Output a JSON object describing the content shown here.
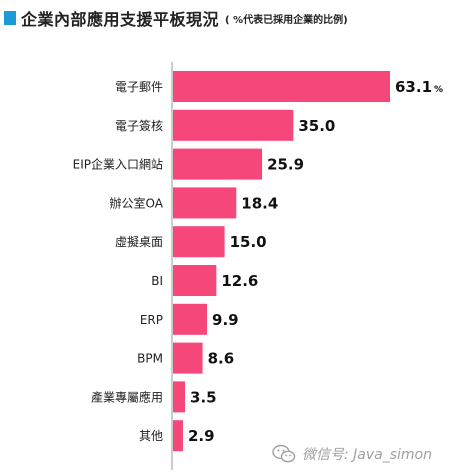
{
  "title": "企業內部應用支援平板現況",
  "title_note": "( %代表已採用企業的比例)",
  "colors": {
    "bar": "#f5477a",
    "accent": "#1a9ad6"
  },
  "chart_data": {
    "type": "bar",
    "orientation": "horizontal",
    "categories": [
      "電子郵件",
      "電子簽核",
      "EIP企業入口網站",
      "辦公室OA",
      "虛擬桌面",
      "BI",
      "ERP",
      "BPM",
      "產業專屬應用",
      "其他"
    ],
    "values": [
      63.1,
      35.0,
      25.9,
      18.4,
      15.0,
      12.6,
      9.9,
      8.6,
      3.5,
      2.9
    ],
    "value_labels": [
      "63.1",
      "35.0",
      "25.9",
      "18.4",
      "15.0",
      "12.6",
      "9.9",
      "8.6",
      "3.5",
      "2.9"
    ],
    "unit": "%",
    "xlim": [
      0,
      63.1
    ],
    "grid": false,
    "legend": "none"
  },
  "watermark": {
    "icon": "wechat-icon",
    "text": "微信号: Java_simon"
  }
}
